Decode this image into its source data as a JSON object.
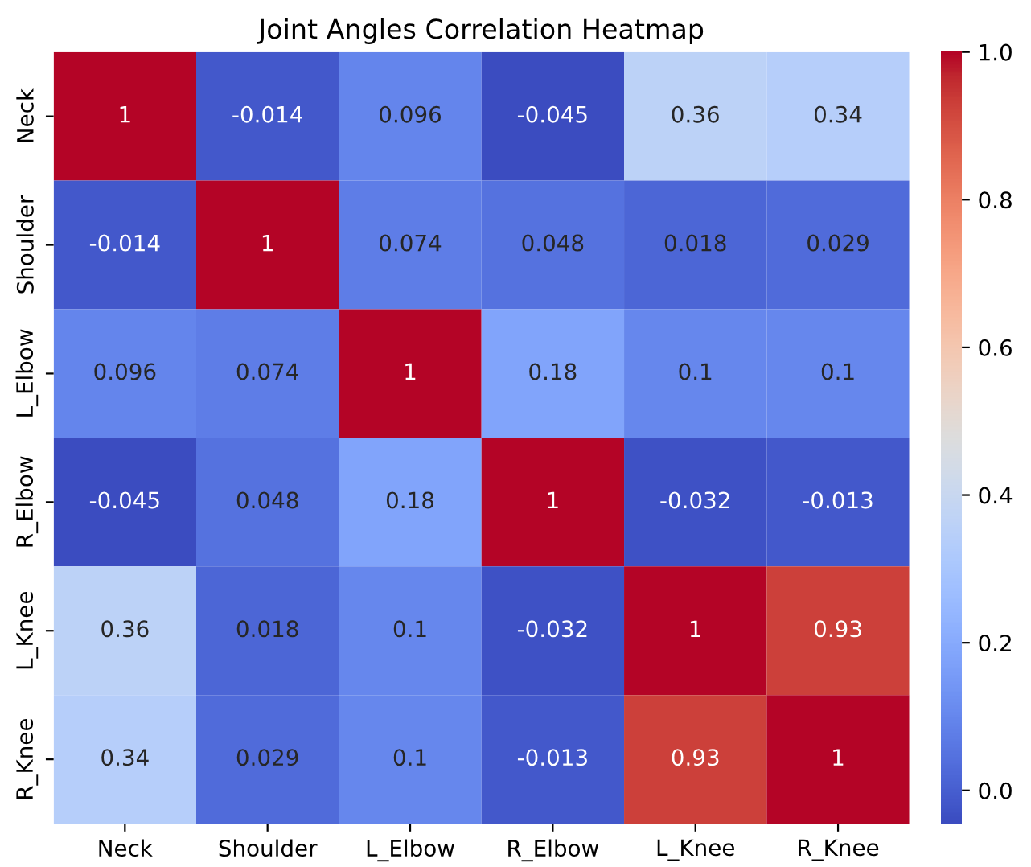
{
  "chart_data": {
    "type": "heatmap",
    "title": "Joint Angles Correlation Heatmap",
    "categories": [
      "Neck",
      "Shoulder",
      "L_Elbow",
      "R_Elbow",
      "L_Knee",
      "R_Knee"
    ],
    "y_categories": [
      "Neck",
      "Shoulder",
      "L_Elbow",
      "R_Elbow",
      "L_Knee",
      "R_Knee"
    ],
    "cells": [
      [
        1,
        -0.014,
        0.096,
        -0.045,
        0.36,
        0.34
      ],
      [
        -0.014,
        1,
        0.074,
        0.048,
        0.018,
        0.029
      ],
      [
        0.096,
        0.074,
        1,
        0.18,
        0.1,
        0.1
      ],
      [
        -0.045,
        0.048,
        0.18,
        1,
        -0.032,
        -0.013
      ],
      [
        0.36,
        0.018,
        0.1,
        -0.032,
        1,
        0.93
      ],
      [
        0.34,
        0.029,
        0.1,
        -0.013,
        0.93,
        1
      ]
    ],
    "data_labels": true,
    "clim": [
      -0.045,
      1
    ],
    "cticks": [
      {
        "value": 0,
        "label": "0.0"
      },
      {
        "value": 0.2,
        "label": "0.2"
      },
      {
        "value": 0.4,
        "label": "0.4"
      },
      {
        "value": 0.6,
        "label": "0.6"
      },
      {
        "value": 0.8,
        "label": "0.8"
      },
      {
        "value": 1,
        "label": "1.0"
      }
    ]
  }
}
